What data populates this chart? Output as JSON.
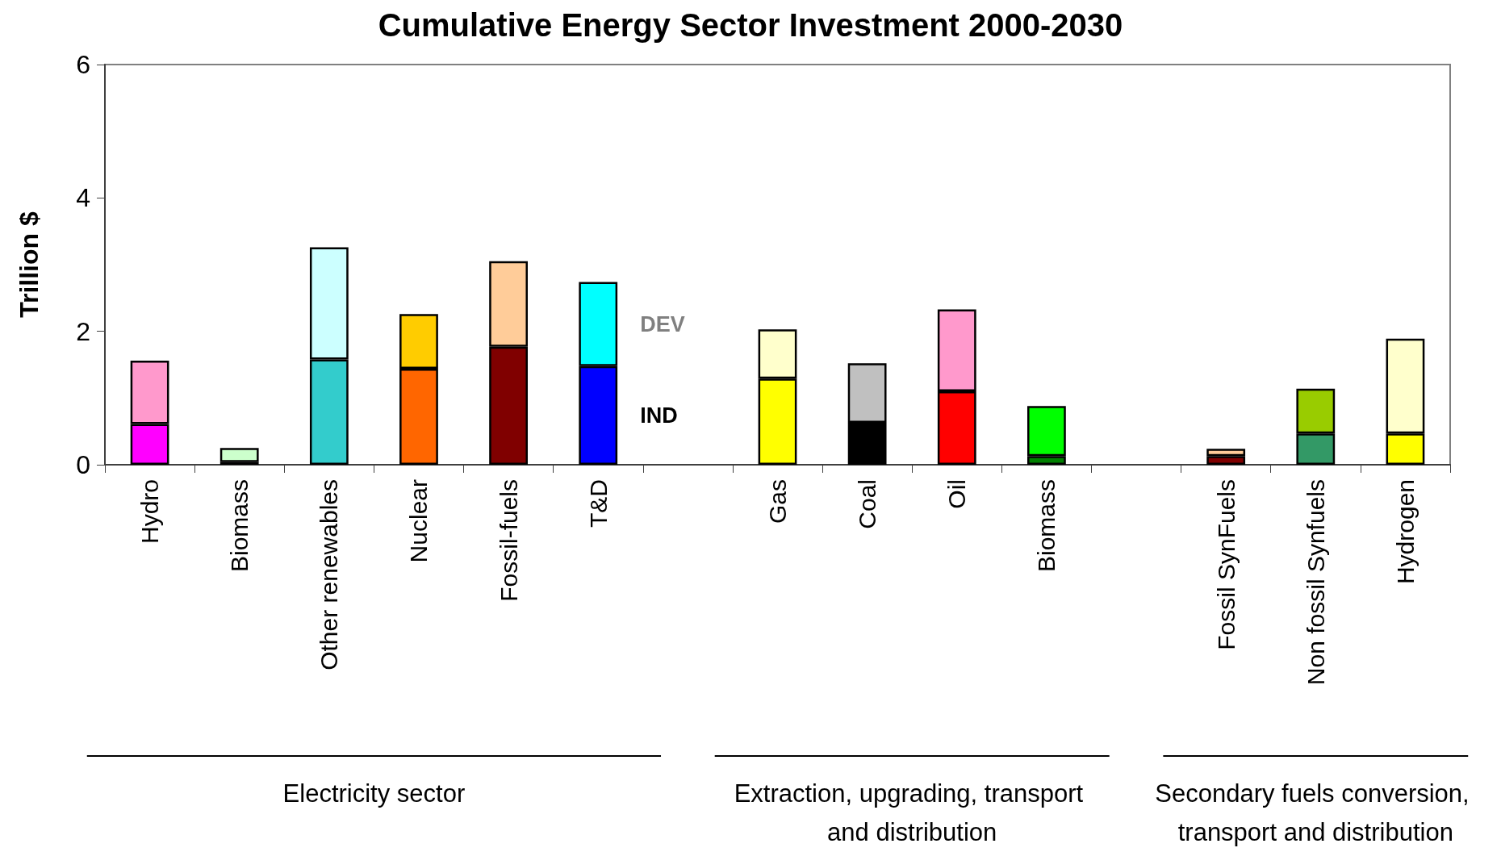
{
  "chart_data": {
    "type": "bar",
    "title": "Cumulative Energy Sector Investment 2000-2030",
    "ylabel": "Trillion $",
    "categories": [
      "Hydro",
      "Biomass",
      "Other renewables",
      "Nuclear",
      "Fossil-fuels",
      "T&D",
      null,
      "Gas",
      "Coal",
      "Oil",
      "Biomass",
      null,
      "Fossil SynFuels",
      "Non fossil Synfuels",
      "Hydrogen"
    ],
    "series": [
      {
        "name": "IND",
        "values": [
          0.61,
          0.04,
          1.58,
          1.44,
          1.77,
          1.48,
          null,
          1.29,
          0.63,
          1.1,
          0.13,
          null,
          0.13,
          0.47,
          0.47
        ],
        "colors": [
          "#ff00ff",
          "#006600",
          "#33cccc",
          "#ff6600",
          "#800000",
          "#0000ff",
          "#000000",
          "#ffff00",
          "#000000",
          "#ff0000",
          "#008000",
          "#000000",
          "#800000",
          "#339966",
          "#ffff00"
        ]
      },
      {
        "name": "DEV",
        "values": [
          0.95,
          0.21,
          1.68,
          0.82,
          1.28,
          1.26,
          null,
          0.74,
          0.89,
          1.23,
          0.75,
          null,
          0.11,
          0.67,
          1.42
        ],
        "colors": [
          "#ff99cc",
          "#ccffcc",
          "#ccffff",
          "#ffcc00",
          "#ffcc99",
          "#00ffff",
          "#000000",
          "#ffffcc",
          "#c0c0c0",
          "#ff99cc",
          "#00ff00",
          "#000000",
          "#ffcc99",
          "#99cc00",
          "#ffffcc"
        ]
      }
    ],
    "stacked": true,
    "ylim": [
      0,
      6
    ],
    "yticks": [
      0,
      2,
      4,
      6
    ],
    "grid": false,
    "legend": false,
    "annotations": [
      "Electricity sector",
      "Extraction, upgrading, transport and distribution",
      "Secondary fuels conversion, transport and distribution"
    ]
  }
}
